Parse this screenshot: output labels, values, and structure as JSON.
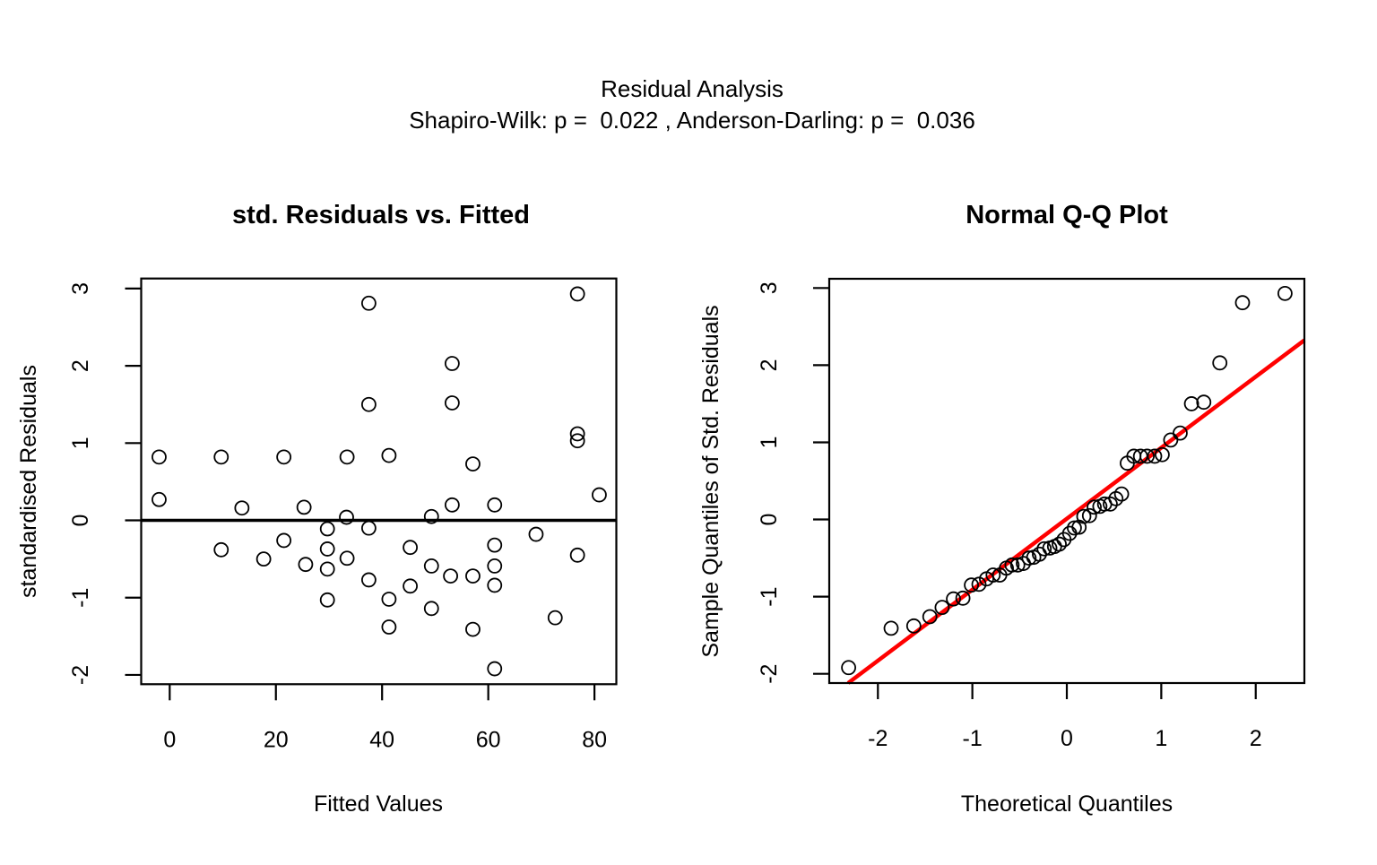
{
  "header": {
    "title": "Residual Analysis",
    "subtitle": "Shapiro-Wilk: p =  0.022 , Anderson-Darling: p =  0.036",
    "shapiro_wilk_p": "0.022",
    "anderson_darling_p": "0.036"
  },
  "colors": {
    "background": "#FFFFFF",
    "point_stroke": "#000000",
    "frame": "#000000",
    "zero_line": "#000000",
    "qq_line": "#FF0000"
  },
  "chart_data": [
    {
      "type": "scatter",
      "title": "std. Residuals vs. Fitted",
      "xlabel": "Fitted Values",
      "ylabel": "standardised Residuals",
      "xlim": [
        -5.37,
        84.12
      ],
      "ylim": [
        -2.12,
        3.13
      ],
      "xticks": [
        0,
        20,
        40,
        60,
        80
      ],
      "yticks": [
        -2,
        -1,
        0,
        1,
        2,
        3
      ],
      "grid": false,
      "hline": 0,
      "marker": "open-circle",
      "points": [
        [
          -2.0,
          0.82
        ],
        [
          -2.0,
          0.27
        ],
        [
          9.7,
          0.82
        ],
        [
          9.7,
          -0.38
        ],
        [
          13.6,
          0.16
        ],
        [
          17.7,
          -0.5
        ],
        [
          21.5,
          0.82
        ],
        [
          21.5,
          -0.26
        ],
        [
          25.3,
          0.17
        ],
        [
          25.6,
          -0.57
        ],
        [
          29.7,
          -0.11
        ],
        [
          29.7,
          -0.37
        ],
        [
          29.7,
          -0.63
        ],
        [
          29.7,
          -1.03
        ],
        [
          33.3,
          0.04
        ],
        [
          33.4,
          0.82
        ],
        [
          33.4,
          -0.49
        ],
        [
          37.5,
          2.81
        ],
        [
          37.5,
          1.5
        ],
        [
          37.5,
          -0.1
        ],
        [
          37.5,
          -0.77
        ],
        [
          41.3,
          0.84
        ],
        [
          41.3,
          -1.02
        ],
        [
          41.3,
          -1.38
        ],
        [
          45.3,
          -0.35
        ],
        [
          45.3,
          -0.85
        ],
        [
          49.3,
          0.05
        ],
        [
          49.3,
          -0.59
        ],
        [
          49.3,
          -1.14
        ],
        [
          53.2,
          2.03
        ],
        [
          53.2,
          1.52
        ],
        [
          53.2,
          0.2
        ],
        [
          52.9,
          -0.72
        ],
        [
          57.1,
          0.73
        ],
        [
          57.1,
          -0.72
        ],
        [
          57.1,
          -1.41
        ],
        [
          61.2,
          0.2
        ],
        [
          61.2,
          -0.32
        ],
        [
          61.2,
          -0.59
        ],
        [
          61.2,
          -0.84
        ],
        [
          61.2,
          -1.92
        ],
        [
          69.0,
          -0.18
        ],
        [
          72.6,
          -1.26
        ],
        [
          76.8,
          2.93
        ],
        [
          76.8,
          1.12
        ],
        [
          76.8,
          1.03
        ],
        [
          76.8,
          -0.45
        ],
        [
          80.9,
          0.33
        ]
      ]
    },
    {
      "type": "scatter",
      "title": "Normal Q-Q Plot",
      "xlabel": "Theoretical Quantiles",
      "ylabel": "Sample Quantiles of Std. Residuals",
      "xlim": [
        -2.515,
        2.515
      ],
      "ylim": [
        -2.12,
        3.12
      ],
      "xticks": [
        -2,
        -1,
        0,
        1,
        2
      ],
      "yticks": [
        -2,
        -1,
        0,
        1,
        2,
        3
      ],
      "grid": false,
      "marker": "open-circle",
      "ref_line": {
        "slope": 0.92,
        "intercept": 0.01,
        "color": "#FF0000"
      },
      "theoretical_quantiles": [
        -2.31,
        -1.86,
        -1.62,
        -1.45,
        -1.32,
        -1.2,
        -1.1,
        -1.01,
        -0.93,
        -0.85,
        -0.78,
        -0.71,
        -0.64,
        -0.58,
        -0.52,
        -0.46,
        -0.4,
        -0.35,
        -0.29,
        -0.24,
        -0.18,
        -0.13,
        -0.08,
        -0.03,
        0.03,
        0.08,
        0.13,
        0.18,
        0.24,
        0.29,
        0.35,
        0.4,
        0.46,
        0.52,
        0.58,
        0.64,
        0.71,
        0.78,
        0.85,
        0.93,
        1.01,
        1.1,
        1.2,
        1.32,
        1.45,
        1.62,
        1.86,
        2.31
      ],
      "sample_quantiles": [
        -1.92,
        -1.41,
        -1.38,
        -1.26,
        -1.14,
        -1.03,
        -1.02,
        -0.85,
        -0.84,
        -0.77,
        -0.72,
        -0.72,
        -0.63,
        -0.59,
        -0.59,
        -0.57,
        -0.5,
        -0.49,
        -0.45,
        -0.38,
        -0.37,
        -0.35,
        -0.32,
        -0.26,
        -0.18,
        -0.11,
        -0.1,
        0.04,
        0.05,
        0.16,
        0.17,
        0.2,
        0.2,
        0.27,
        0.33,
        0.73,
        0.82,
        0.82,
        0.82,
        0.82,
        0.84,
        1.03,
        1.12,
        1.5,
        1.52,
        2.03,
        2.81,
        2.93
      ]
    }
  ]
}
